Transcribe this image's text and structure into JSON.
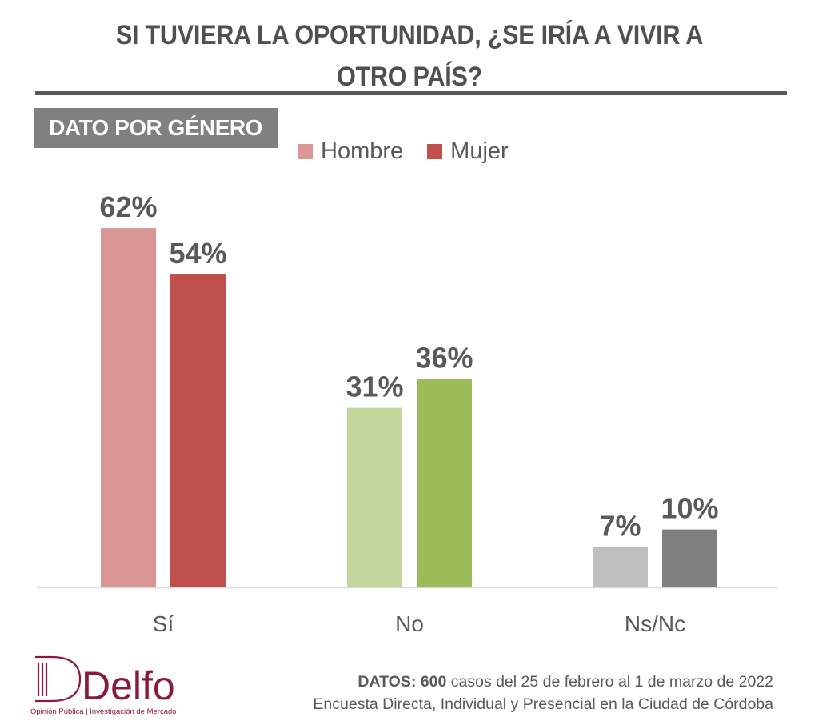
{
  "header": {
    "title_line1": "SI TUVIERA LA OPORTUNIDAD, ¿SE IRÍA A VIVIR A",
    "title_line2": "OTRO PAÍS?",
    "subtitle": "DATO POR GÉNERO"
  },
  "chart_data": {
    "type": "bar",
    "title": "SI TUVIERA LA OPORTUNIDAD, ¿SE IRÍA A VIVIR A OTRO PAÍS?",
    "subtitle": "DATO POR GÉNERO",
    "xlabel": "",
    "ylabel": "",
    "ylim": [
      0,
      70
    ],
    "grid": false,
    "legend_position": "top-center",
    "categories": [
      "Sí",
      "No",
      "Ns/Nc"
    ],
    "series": [
      {
        "name": "Hombre",
        "values": [
          62,
          31,
          7
        ],
        "colors": [
          "#d99694",
          "#c3d69b",
          "#bfbfbf"
        ]
      },
      {
        "name": "Mujer",
        "values": [
          54,
          36,
          10
        ],
        "colors": [
          "#c0504d",
          "#9bbb59",
          "#7f7f7f"
        ]
      }
    ],
    "value_suffix": "%",
    "legend": [
      {
        "label": "Hombre",
        "color": "#d99694"
      },
      {
        "label": "Mujer",
        "color": "#c0504d"
      }
    ]
  },
  "footer": {
    "datos_label": "DATOS:",
    "datos_count": "600",
    "datos_text": " casos del 25 de febrero al 1 de marzo de 2022",
    "method": "Encuesta Directa, Individual y Presencial en la Ciudad de Córdoba"
  },
  "logo": {
    "name": "Delfos",
    "tagline": "Opinión Pública | Investigación de Mercado",
    "color": "#8b1a3a"
  }
}
